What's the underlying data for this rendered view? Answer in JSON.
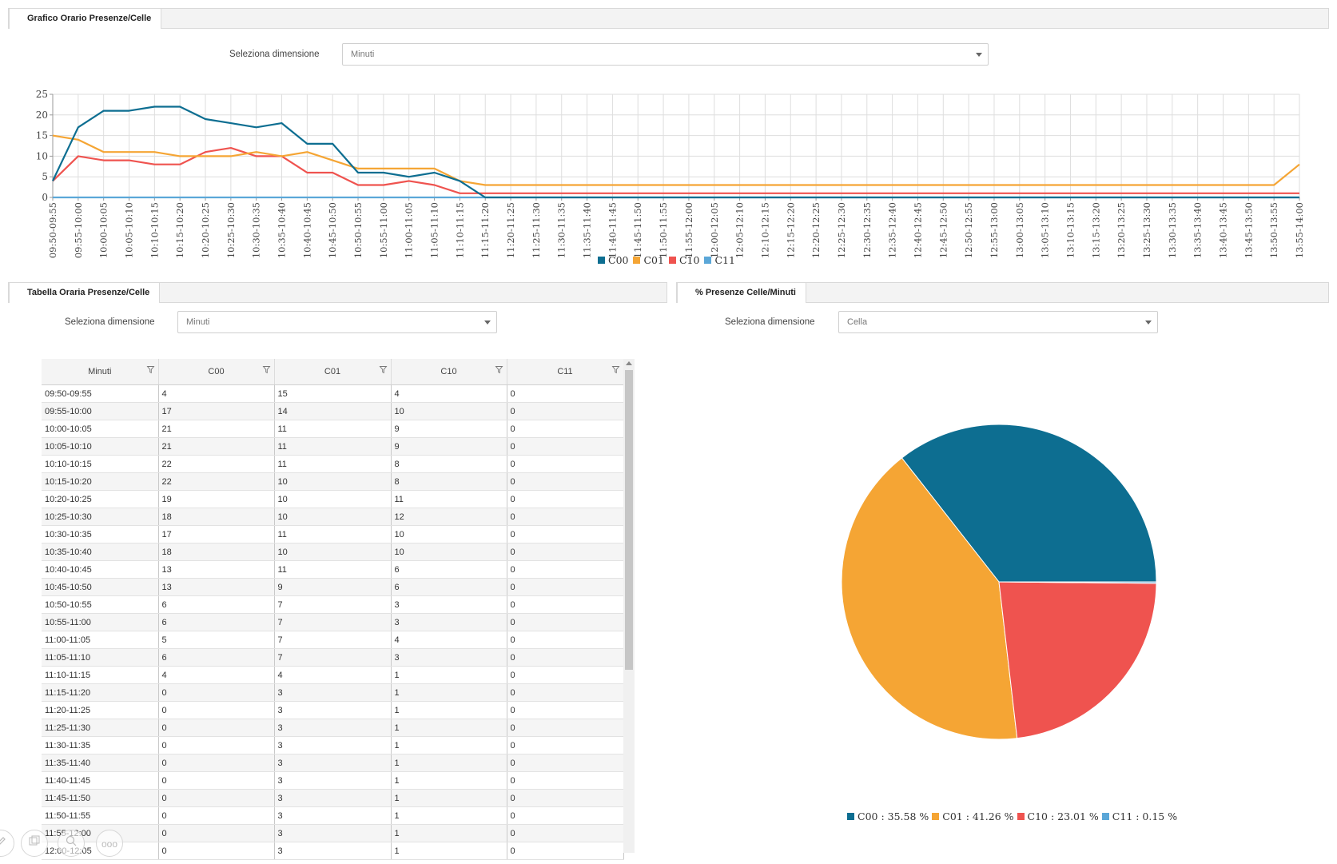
{
  "top_panel": {
    "title": "Grafico Orario Presenze/Celle",
    "dim_label": "Seleziona dimensione",
    "dim_value": "Minuti"
  },
  "table_panel": {
    "title": "Tabella Oraria Presenze/Celle",
    "dim_label": "Seleziona dimensione",
    "dim_value": "Minuti"
  },
  "pie_panel": {
    "title": "% Presenze Celle/Minuti",
    "dim_label": "Seleziona dimensione",
    "dim_value": "Cella"
  },
  "colors": {
    "C00": "#0d6e91",
    "C01": "#f5a534",
    "C10": "#ef534f",
    "C11": "#5ba7d8"
  },
  "table": {
    "columns": [
      "Minuti",
      "C00",
      "C01",
      "C10",
      "C11"
    ],
    "rows": [
      [
        "09:50-09:55",
        "4",
        "15",
        "4",
        "0"
      ],
      [
        "09:55-10:00",
        "17",
        "14",
        "10",
        "0"
      ],
      [
        "10:00-10:05",
        "21",
        "11",
        "9",
        "0"
      ],
      [
        "10:05-10:10",
        "21",
        "11",
        "9",
        "0"
      ],
      [
        "10:10-10:15",
        "22",
        "11",
        "8",
        "0"
      ],
      [
        "10:15-10:20",
        "22",
        "10",
        "8",
        "0"
      ],
      [
        "10:20-10:25",
        "19",
        "10",
        "11",
        "0"
      ],
      [
        "10:25-10:30",
        "18",
        "10",
        "12",
        "0"
      ],
      [
        "10:30-10:35",
        "17",
        "11",
        "10",
        "0"
      ],
      [
        "10:35-10:40",
        "18",
        "10",
        "10",
        "0"
      ],
      [
        "10:40-10:45",
        "13",
        "11",
        "6",
        "0"
      ],
      [
        "10:45-10:50",
        "13",
        "9",
        "6",
        "0"
      ],
      [
        "10:50-10:55",
        "6",
        "7",
        "3",
        "0"
      ],
      [
        "10:55-11:00",
        "6",
        "7",
        "3",
        "0"
      ],
      [
        "11:00-11:05",
        "5",
        "7",
        "4",
        "0"
      ],
      [
        "11:05-11:10",
        "6",
        "7",
        "3",
        "0"
      ],
      [
        "11:10-11:15",
        "4",
        "4",
        "1",
        "0"
      ],
      [
        "11:15-11:20",
        "0",
        "3",
        "1",
        "0"
      ],
      [
        "11:20-11:25",
        "0",
        "3",
        "1",
        "0"
      ],
      [
        "11:25-11:30",
        "0",
        "3",
        "1",
        "0"
      ],
      [
        "11:30-11:35",
        "0",
        "3",
        "1",
        "0"
      ],
      [
        "11:35-11:40",
        "0",
        "3",
        "1",
        "0"
      ],
      [
        "11:40-11:45",
        "0",
        "3",
        "1",
        "0"
      ],
      [
        "11:45-11:50",
        "0",
        "3",
        "1",
        "0"
      ],
      [
        "11:50-11:55",
        "0",
        "3",
        "1",
        "0"
      ],
      [
        "11:55-12:00",
        "0",
        "3",
        "1",
        "0"
      ],
      [
        "12:00-12:05",
        "0",
        "3",
        "1",
        "0"
      ]
    ]
  },
  "chart_data": [
    {
      "type": "line",
      "ylim": [
        0,
        25
      ],
      "yticks": [
        0,
        5,
        10,
        15,
        20,
        25
      ],
      "grid": true,
      "legend_position": "bottom-center",
      "categories": [
        "09:50-09:55",
        "09:55-10:00",
        "10:00-10:05",
        "10:05-10:10",
        "10:10-10:15",
        "10:15-10:20",
        "10:20-10:25",
        "10:25-10:30",
        "10:30-10:35",
        "10:35-10:40",
        "10:40-10:45",
        "10:45-10:50",
        "10:50-10:55",
        "10:55-11:00",
        "11:00-11:05",
        "11:05-11:10",
        "11:10-11:15",
        "11:15-11:20",
        "11:20-11:25",
        "11:25-11:30",
        "11:30-11:35",
        "11:35-11:40",
        "11:40-11:45",
        "11:45-11:50",
        "11:50-11:55",
        "11:55-12:00",
        "12:00-12:05",
        "12:05-12:10",
        "12:10-12:15",
        "12:15-12:20",
        "12:20-12:25",
        "12:25-12:30",
        "12:30-12:35",
        "12:35-12:40",
        "12:40-12:45",
        "12:45-12:50",
        "12:50-12:55",
        "12:55-13:00",
        "13:00-13:05",
        "13:05-13:10",
        "13:10-13:15",
        "13:15-13:20",
        "13:20-13:25",
        "13:25-13:30",
        "13:30-13:35",
        "13:35-13:40",
        "13:40-13:45",
        "13:45-13:50",
        "13:50-13:55",
        "13:55-14:00"
      ],
      "series": [
        {
          "name": "C00",
          "values": [
            4,
            17,
            21,
            21,
            22,
            22,
            19,
            18,
            17,
            18,
            13,
            13,
            6,
            6,
            5,
            6,
            4,
            0,
            0,
            0,
            0,
            0,
            0,
            0,
            0,
            0,
            0,
            0,
            0,
            0,
            0,
            0,
            0,
            0,
            0,
            0,
            0,
            0,
            0,
            0,
            0,
            0,
            0,
            0,
            0,
            0,
            0,
            0,
            0,
            0
          ]
        },
        {
          "name": "C01",
          "values": [
            15,
            14,
            11,
            11,
            11,
            10,
            10,
            10,
            11,
            10,
            11,
            9,
            7,
            7,
            7,
            7,
            4,
            3,
            3,
            3,
            3,
            3,
            3,
            3,
            3,
            3,
            3,
            3,
            3,
            3,
            3,
            3,
            3,
            3,
            3,
            3,
            3,
            3,
            3,
            3,
            3,
            3,
            3,
            3,
            3,
            3,
            3,
            3,
            3,
            8
          ]
        },
        {
          "name": "C10",
          "values": [
            4,
            10,
            9,
            9,
            8,
            8,
            11,
            12,
            10,
            10,
            6,
            6,
            3,
            3,
            4,
            3,
            1,
            1,
            1,
            1,
            1,
            1,
            1,
            1,
            1,
            1,
            1,
            1,
            1,
            1,
            1,
            1,
            1,
            1,
            1,
            1,
            1,
            1,
            1,
            1,
            1,
            1,
            1,
            1,
            1,
            1,
            1,
            1,
            1,
            1
          ]
        },
        {
          "name": "C11",
          "values": [
            0,
            0,
            0,
            0,
            0,
            0,
            0,
            0,
            0,
            0,
            0,
            0,
            0,
            0,
            0,
            0,
            0,
            0,
            0,
            0,
            0,
            0,
            0,
            0,
            0,
            0,
            0,
            0,
            0,
            0,
            0,
            0,
            0,
            0,
            0,
            0,
            0,
            0,
            0,
            0,
            0,
            0,
            0,
            0,
            0,
            0,
            0,
            0,
            0,
            0
          ]
        }
      ]
    },
    {
      "type": "pie",
      "legend_position": "bottom",
      "slices": [
        {
          "name": "C00",
          "value": 35.58,
          "label": "C00 : 35.58 %"
        },
        {
          "name": "C01",
          "value": 41.26,
          "label": "C01 : 41.26 %"
        },
        {
          "name": "C10",
          "value": 23.01,
          "label": "C10 : 23.01 %"
        },
        {
          "name": "C11",
          "value": 0.15,
          "label": "C11 : 0.15 %"
        }
      ]
    }
  ],
  "icons": {
    "filter": "filter-icon",
    "dropdown": "chevron-down-icon",
    "overlay": [
      "edit-icon",
      "copy-icon",
      "zoom-icon",
      "more-icon"
    ]
  },
  "overlay_text": {
    "more": "ooo"
  }
}
